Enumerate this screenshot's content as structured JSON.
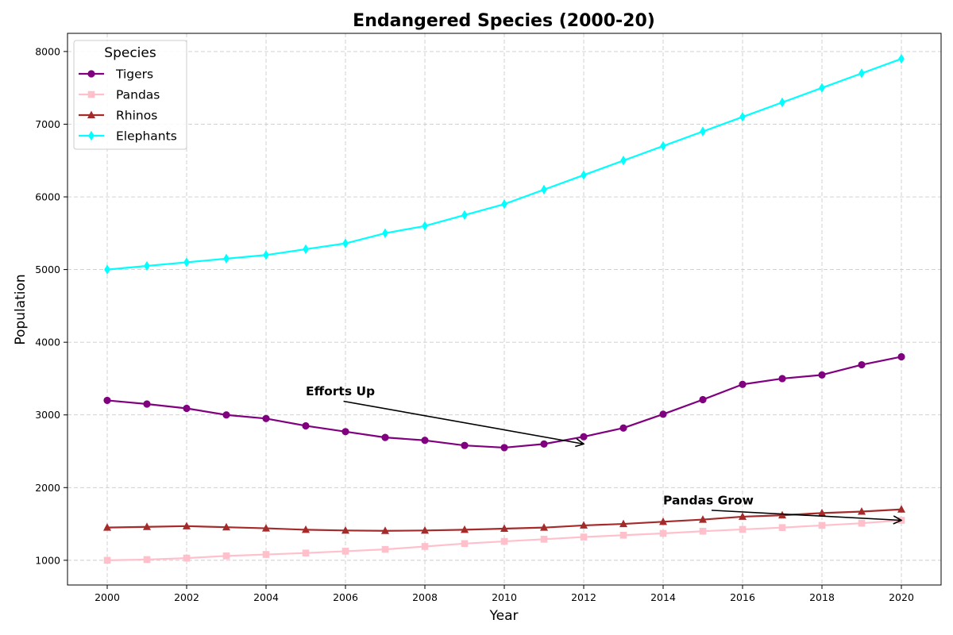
{
  "chart_data": {
    "type": "line",
    "title": "Endangered Species (2000-20)",
    "xlabel": "Year",
    "ylabel": "Population",
    "x": [
      2000,
      2001,
      2002,
      2003,
      2004,
      2005,
      2006,
      2007,
      2008,
      2009,
      2010,
      2011,
      2012,
      2013,
      2014,
      2015,
      2016,
      2017,
      2018,
      2019,
      2020
    ],
    "xlim": [
      1999,
      2021
    ],
    "ylim": [
      660,
      8250
    ],
    "xticks": [
      "2000",
      "2002",
      "2004",
      "2006",
      "2008",
      "2010",
      "2012",
      "2014",
      "2016",
      "2018",
      "2020"
    ],
    "yticks": [
      "1000",
      "2000",
      "3000",
      "4000",
      "5000",
      "6000",
      "7000",
      "8000"
    ],
    "grid": true,
    "legend": {
      "title": "Species",
      "placement": "top-left"
    },
    "series": [
      {
        "name": "Tigers",
        "color": "#800080",
        "marker": "circle",
        "values": [
          3200,
          3150,
          3090,
          3000,
          2950,
          2850,
          2770,
          2690,
          2650,
          2580,
          2550,
          2600,
          2700,
          2820,
          3010,
          3210,
          3420,
          3500,
          3550,
          3690,
          3800
        ]
      },
      {
        "name": "Pandas",
        "color": "#ffc0cb",
        "marker": "square",
        "values": [
          1000,
          1010,
          1030,
          1060,
          1080,
          1100,
          1125,
          1150,
          1190,
          1230,
          1260,
          1290,
          1320,
          1345,
          1370,
          1400,
          1425,
          1450,
          1480,
          1510,
          1550
        ]
      },
      {
        "name": "Rhinos",
        "color": "#a52a2a",
        "marker": "triangle",
        "values": [
          1450,
          1460,
          1470,
          1455,
          1440,
          1420,
          1410,
          1405,
          1410,
          1420,
          1435,
          1450,
          1480,
          1500,
          1530,
          1560,
          1600,
          1620,
          1650,
          1670,
          1700
        ]
      },
      {
        "name": "Elephants",
        "color": "#00ffff",
        "marker": "diamond",
        "values": [
          5000,
          5050,
          5100,
          5150,
          5200,
          5280,
          5360,
          5500,
          5600,
          5750,
          5900,
          6100,
          6300,
          6500,
          6700,
          6900,
          7100,
          7300,
          7500,
          7700,
          7900
        ]
      }
    ],
    "annotations": [
      {
        "text": "Efforts Up",
        "text_x": 2005,
        "text_y": 3330,
        "target_x": 2012,
        "target_y": 2600
      },
      {
        "text": "Pandas Grow",
        "text_x": 2014,
        "text_y": 1830,
        "target_x": 2020,
        "target_y": 1550
      }
    ]
  }
}
